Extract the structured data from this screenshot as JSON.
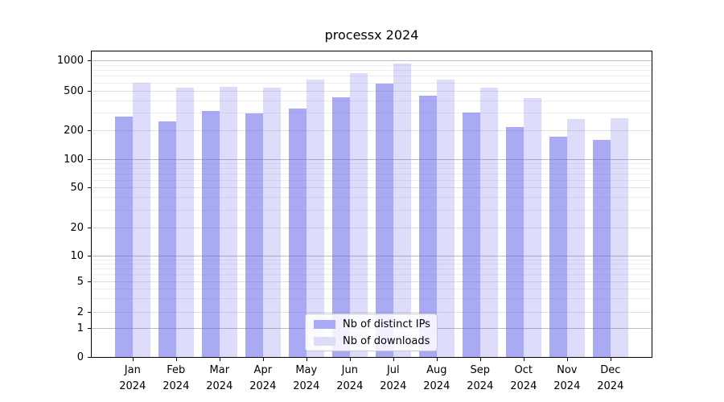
{
  "chart": {
    "title": "processx 2024",
    "legend": {
      "items": [
        {
          "label": "Nb of distinct IPs",
          "key": "distinct_ips"
        },
        {
          "label": "Nb of downloads",
          "key": "downloads"
        }
      ]
    }
  },
  "chart_data": {
    "type": "bar",
    "categories": [
      "Jan 2024",
      "Feb 2024",
      "Mar 2024",
      "Apr 2024",
      "May 2024",
      "Jun 2024",
      "Jul 2024",
      "Aug 2024",
      "Sep 2024",
      "Oct 2024",
      "Nov 2024",
      "Dec 2024"
    ],
    "x_axis": {
      "months": [
        "Jan",
        "Feb",
        "Mar",
        "Apr",
        "May",
        "Jun",
        "Jul",
        "Aug",
        "Sep",
        "Oct",
        "Nov",
        "Dec"
      ],
      "year": "2024"
    },
    "series": [
      {
        "name": "Nb of distinct IPs",
        "values": [
          275,
          245,
          310,
          295,
          330,
          425,
          590,
          440,
          300,
          215,
          170,
          158
        ]
      },
      {
        "name": "Nb of downloads",
        "values": [
          600,
          535,
          545,
          530,
          640,
          745,
          930,
          640,
          535,
          420,
          260,
          265
        ]
      }
    ],
    "title": "processx 2024",
    "xlabel": "",
    "ylabel": "",
    "yscale": "log-like (symlog, linear below 1)",
    "y_ticks": [
      0,
      1,
      2,
      5,
      10,
      20,
      50,
      100,
      200,
      500,
      1000
    ],
    "ylim": [
      0,
      1200
    ],
    "grid": true,
    "legend_position": "lower center",
    "colors": {
      "distinct_ips": "rgba(100,100,235,0.55)",
      "downloads": "rgba(100,100,235,0.22)",
      "distinct_ips_solid": "#aaaaf6",
      "downloads_solid": "#ddddfa",
      "grid_major": "#bdbdbd",
      "grid_labeled": "#e0e0e0",
      "grid_minor": "#ededed"
    }
  }
}
